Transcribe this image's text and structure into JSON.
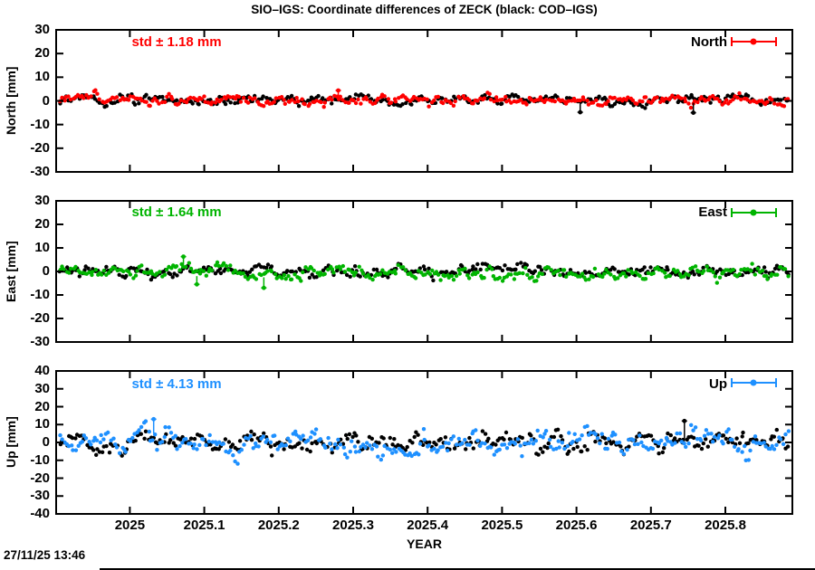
{
  "title": "SIO–IGS: Coordinate differences of ZECK (black: COD–IGS)",
  "timestamp": "27/11/25 13:46",
  "x_axis": {
    "label": "YEAR",
    "range": [
      2024.901,
      2025.89
    ],
    "tick_labels": [
      "2025",
      "2025.1",
      "2025.2",
      "2025.3",
      "2025.4",
      "2025.5",
      "2025.6",
      "2025.7",
      "2025.8"
    ]
  },
  "chart_data": [
    {
      "type": "scatter",
      "panel": "North",
      "ylabel": "North [mm]",
      "ylim": [
        -30,
        30
      ],
      "yticks": [
        30,
        20,
        10,
        0,
        -10,
        -20,
        -30
      ],
      "std_label": "std ± 1.18 mm",
      "std_mm": 1.18,
      "legend_label": "North",
      "accent": "#ff0000",
      "series": [
        {
          "name": "COD–IGS",
          "color": "#000000",
          "std_mm": 1.2,
          "n_points": 330,
          "trend": [
            [
              2024.9,
              0.5
            ],
            [
              2025.89,
              0.5
            ]
          ]
        },
        {
          "name": "SIO–IGS",
          "color": "#ff0000",
          "std_mm": 1.18,
          "n_points": 330,
          "trend": [
            [
              2024.9,
              0.4
            ],
            [
              2025.89,
              0.4
            ]
          ]
        }
      ],
      "outliers": [
        {
          "series": 0,
          "x": 2025.605,
          "y": -4.8,
          "bar_to": -1.2
        },
        {
          "series": 0,
          "x": 2025.757,
          "y": -5.0,
          "bar_to": -0.8
        },
        {
          "series": 1,
          "x": 2025.28,
          "y": 4.4,
          "bar_to": 1.5
        }
      ]
    },
    {
      "type": "scatter",
      "panel": "East",
      "ylabel": "East [mm]",
      "ylim": [
        -30,
        30
      ],
      "yticks": [
        30,
        20,
        10,
        0,
        -10,
        -20,
        -30
      ],
      "std_label": "std ± 1.64 mm",
      "std_mm": 1.64,
      "legend_label": "East",
      "accent": "#00b400",
      "series": [
        {
          "name": "COD–IGS",
          "color": "#000000",
          "std_mm": 1.25,
          "n_points": 330,
          "trend": [
            [
              2024.9,
              0.0
            ],
            [
              2025.89,
              0.0
            ]
          ]
        },
        {
          "name": "SIO–IGS",
          "color": "#00b400",
          "std_mm": 1.64,
          "n_points": 330,
          "trend": [
            [
              2024.9,
              -0.8
            ],
            [
              2025.05,
              -0.5
            ],
            [
              2025.08,
              0.8
            ],
            [
              2025.12,
              1.2
            ],
            [
              2025.17,
              -1.5
            ],
            [
              2025.21,
              -0.6
            ],
            [
              2025.5,
              -0.9
            ],
            [
              2025.89,
              -0.8
            ]
          ]
        }
      ],
      "outliers": [
        {
          "series": 1,
          "x": 2025.072,
          "y": 6.3,
          "bar_to": 2.0
        },
        {
          "series": 1,
          "x": 2025.09,
          "y": -5.5,
          "bar_to": -2.0
        },
        {
          "series": 1,
          "x": 2025.18,
          "y": -7.0,
          "bar_to": -2.5
        }
      ]
    },
    {
      "type": "scatter",
      "panel": "Up",
      "ylabel": "Up [mm]",
      "ylim": [
        -40,
        40
      ],
      "yticks": [
        40,
        30,
        20,
        10,
        0,
        -10,
        -20,
        -30,
        -40
      ],
      "std_label": "std ± 4.13 mm",
      "std_mm": 4.13,
      "legend_label": "Up",
      "accent": "#1e90ff",
      "series": [
        {
          "name": "COD–IGS",
          "color": "#000000",
          "std_mm": 3.0,
          "n_points": 330,
          "trend": [
            [
              2024.9,
              1.0
            ],
            [
              2025.89,
              0.5
            ]
          ]
        },
        {
          "name": "SIO–IGS",
          "color": "#1e90ff",
          "std_mm": 3.5,
          "n_points": 330,
          "trend": [
            [
              2024.9,
              0.0
            ],
            [
              2025.0,
              1.0
            ],
            [
              2025.03,
              4.5
            ],
            [
              2025.06,
              2.0
            ],
            [
              2025.1,
              -1.0
            ],
            [
              2025.14,
              -6.0
            ],
            [
              2025.18,
              -5.0
            ],
            [
              2025.22,
              0.0
            ],
            [
              2025.3,
              -3.0
            ],
            [
              2025.36,
              -5.0
            ],
            [
              2025.42,
              -1.0
            ],
            [
              2025.5,
              0.0
            ],
            [
              2025.57,
              2.0
            ],
            [
              2025.62,
              3.0
            ],
            [
              2025.7,
              0.0
            ],
            [
              2025.8,
              1.0
            ],
            [
              2025.89,
              0.5
            ]
          ]
        }
      ],
      "outliers": [
        {
          "series": 0,
          "x": 2025.745,
          "y": 12.0,
          "bar_to": 2.0
        },
        {
          "series": 1,
          "x": 2025.032,
          "y": 13.0,
          "bar_to": 5.0
        }
      ]
    }
  ]
}
